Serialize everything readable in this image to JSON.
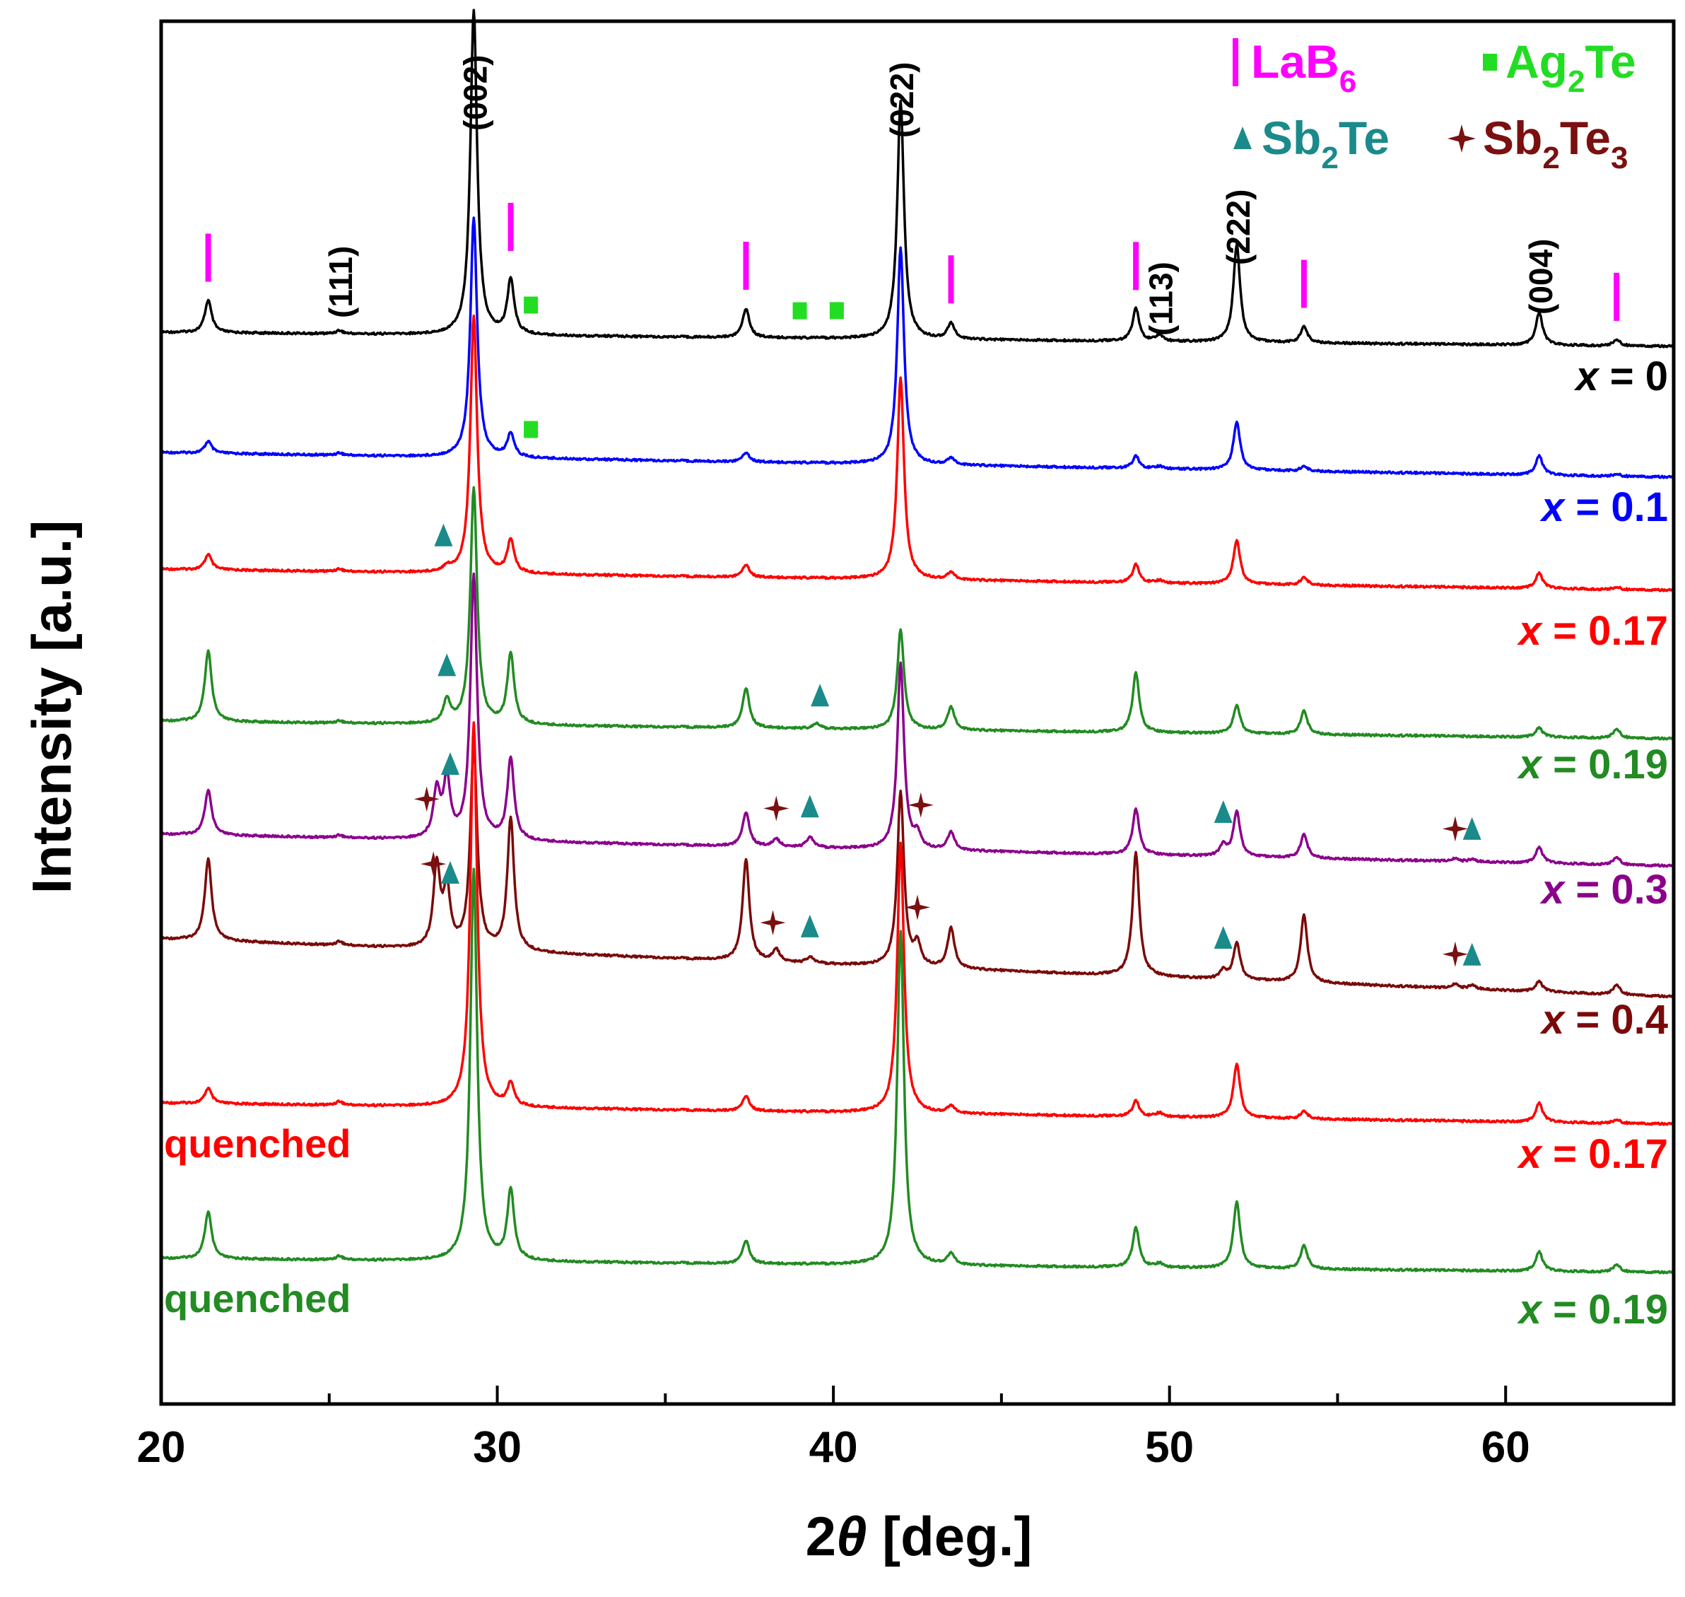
{
  "chart_data": {
    "type": "line",
    "xlabel_num": "2",
    "xlabel_theta": "θ",
    "xlabel_unit": " [deg.]",
    "ylabel": "Intensity [a.u.]",
    "xlim": [
      20,
      65
    ],
    "x_ticks": [
      "20",
      "30",
      "40",
      "50",
      "60"
    ],
    "legend": [
      {
        "name": "LaB",
        "sub": "6",
        "marker": "bar",
        "color": "#ff00ff"
      },
      {
        "name": "Ag",
        "sub": "2",
        "tail": "Te",
        "marker": "square",
        "color": "#22dd22"
      },
      {
        "name": "Sb",
        "sub": "2",
        "tail": "Te",
        "marker": "triangle",
        "color": "#1b8a8a"
      },
      {
        "name": "Sb",
        "sub": "2",
        "tail": "Te",
        "sub2": "3",
        "marker": "star",
        "color": "#7a1010"
      }
    ],
    "miller_indices": [
      {
        "label": "(111)",
        "x": 25.3
      },
      {
        "label": "(002)",
        "x": 29.3
      },
      {
        "label": "(022)",
        "x": 42.0
      },
      {
        "label": "(113)",
        "x": 49.7
      },
      {
        "label": "(222)",
        "x": 52.0
      },
      {
        "label": "(004)",
        "x": 61.0
      }
    ],
    "series": [
      {
        "name": "x = 0",
        "x_var": "x",
        "value": " = 0",
        "note": "",
        "color": "#000000",
        "baseline": 0.0,
        "amp": 1.0,
        "peaks": [
          [
            21.4,
            0.1
          ],
          [
            25.3,
            0.01
          ],
          [
            29.3,
            1.0
          ],
          [
            30.4,
            0.17
          ],
          [
            37.4,
            0.09
          ],
          [
            42.0,
            0.73
          ],
          [
            43.5,
            0.05
          ],
          [
            49.0,
            0.1
          ],
          [
            49.7,
            0.02
          ],
          [
            52.0,
            0.3
          ],
          [
            54.0,
            0.05
          ],
          [
            61.0,
            0.1
          ],
          [
            63.3,
            0.02
          ]
        ]
      },
      {
        "name": "x = 0.1",
        "x_var": "x",
        "value": " = 0.1",
        "note": "",
        "color": "#0000ff",
        "baseline": 0.0,
        "amp": 1.0,
        "peaks": [
          [
            21.4,
            0.05
          ],
          [
            25.3,
            0.01
          ],
          [
            29.3,
            1.0
          ],
          [
            30.4,
            0.1
          ],
          [
            37.4,
            0.04
          ],
          [
            42.0,
            0.9
          ],
          [
            43.5,
            0.03
          ],
          [
            49.0,
            0.05
          ],
          [
            49.7,
            0.01
          ],
          [
            52.0,
            0.2
          ],
          [
            54.0,
            0.02
          ],
          [
            61.0,
            0.08
          ],
          [
            63.3,
            0.01
          ]
        ]
      },
      {
        "name": "x = 0.17",
        "x_var": "x",
        "value": " = 0.17",
        "note": "",
        "color": "#ff0000",
        "baseline": 0.0,
        "amp": 1.0,
        "peaks": [
          [
            21.4,
            0.06
          ],
          [
            25.3,
            0.01
          ],
          [
            28.5,
            0.02
          ],
          [
            29.3,
            1.0
          ],
          [
            30.4,
            0.13
          ],
          [
            37.4,
            0.05
          ],
          [
            42.0,
            0.78
          ],
          [
            43.5,
            0.03
          ],
          [
            49.0,
            0.07
          ],
          [
            49.7,
            0.01
          ],
          [
            52.0,
            0.17
          ],
          [
            54.0,
            0.03
          ],
          [
            61.0,
            0.06
          ],
          [
            63.3,
            0.01
          ]
        ]
      },
      {
        "name": "x = 0.19",
        "x_var": "x",
        "value": " = 0.19",
        "note": "",
        "color": "#228b22",
        "baseline": 0.0,
        "amp": 1.0,
        "peaks": [
          [
            21.4,
            0.3
          ],
          [
            25.3,
            0.01
          ],
          [
            28.5,
            0.1
          ],
          [
            29.3,
            1.0
          ],
          [
            30.4,
            0.3
          ],
          [
            37.4,
            0.17
          ],
          [
            39.5,
            0.02
          ],
          [
            42.0,
            0.42
          ],
          [
            43.5,
            0.1
          ],
          [
            49.0,
            0.25
          ],
          [
            52.0,
            0.12
          ],
          [
            54.0,
            0.1
          ],
          [
            61.0,
            0.04
          ],
          [
            63.3,
            0.04
          ]
        ]
      },
      {
        "name": "x = 0.3",
        "x_var": "x",
        "value": " = 0.3",
        "note": "",
        "color": "#8b008b",
        "baseline": 0.0,
        "amp": 1.0,
        "peaks": [
          [
            21.4,
            0.17
          ],
          [
            25.3,
            0.01
          ],
          [
            28.2,
            0.18
          ],
          [
            28.5,
            0.22
          ],
          [
            29.3,
            1.0
          ],
          [
            30.4,
            0.31
          ],
          [
            37.4,
            0.13
          ],
          [
            38.3,
            0.03
          ],
          [
            39.3,
            0.04
          ],
          [
            42.0,
            0.7
          ],
          [
            42.5,
            0.05
          ],
          [
            43.5,
            0.07
          ],
          [
            49.0,
            0.17
          ],
          [
            51.6,
            0.04
          ],
          [
            52.0,
            0.17
          ],
          [
            54.0,
            0.09
          ],
          [
            58.5,
            0.01
          ],
          [
            59.0,
            0.01
          ],
          [
            61.0,
            0.06
          ],
          [
            63.3,
            0.03
          ]
        ]
      },
      {
        "name": "x = 0.4",
        "x_var": "x",
        "value": " = 0.4",
        "note": "",
        "color": "#7a0a0a",
        "baseline": 0.0,
        "amp": 1.0,
        "peaks": [
          [
            21.4,
            0.4
          ],
          [
            25.3,
            0.02
          ],
          [
            28.2,
            0.4
          ],
          [
            28.5,
            0.28
          ],
          [
            29.3,
            1.0
          ],
          [
            30.4,
            0.65
          ],
          [
            37.4,
            0.5
          ],
          [
            38.3,
            0.06
          ],
          [
            39.3,
            0.03
          ],
          [
            42.0,
            0.85
          ],
          [
            42.5,
            0.1
          ],
          [
            43.5,
            0.2
          ],
          [
            49.0,
            0.6
          ],
          [
            51.6,
            0.04
          ],
          [
            52.0,
            0.18
          ],
          [
            54.0,
            0.33
          ],
          [
            58.5,
            0.02
          ],
          [
            59.0,
            0.02
          ],
          [
            61.0,
            0.05
          ],
          [
            63.3,
            0.05
          ]
        ]
      },
      {
        "name": "x = 0.17",
        "x_var": "x",
        "value": " = 0.17",
        "note": "quenched",
        "color": "#ff0000",
        "baseline": 0.0,
        "amp": 1.0,
        "peaks": [
          [
            21.4,
            0.04
          ],
          [
            25.3,
            0.01
          ],
          [
            29.3,
            1.0
          ],
          [
            30.4,
            0.06
          ],
          [
            37.4,
            0.04
          ],
          [
            42.0,
            0.7
          ],
          [
            43.5,
            0.02
          ],
          [
            49.0,
            0.04
          ],
          [
            49.7,
            0.01
          ],
          [
            52.0,
            0.14
          ],
          [
            54.0,
            0.02
          ],
          [
            61.0,
            0.05
          ],
          [
            63.3,
            0.01
          ]
        ]
      },
      {
        "name": "x = 0.19",
        "x_var": "x",
        "value": " = 0.19",
        "note": "quenched",
        "color": "#228b22",
        "baseline": 0.0,
        "amp": 1.0,
        "peaks": [
          [
            21.4,
            0.12
          ],
          [
            25.3,
            0.01
          ],
          [
            29.3,
            1.0
          ],
          [
            30.4,
            0.18
          ],
          [
            37.4,
            0.06
          ],
          [
            42.0,
            0.85
          ],
          [
            43.5,
            0.03
          ],
          [
            49.0,
            0.1
          ],
          [
            49.7,
            0.01
          ],
          [
            52.0,
            0.17
          ],
          [
            54.0,
            0.06
          ],
          [
            61.0,
            0.05
          ],
          [
            63.3,
            0.02
          ]
        ]
      }
    ],
    "phase_markers": [
      {
        "phase": "LaB6",
        "series": 0,
        "x": [
          21.4,
          30.4,
          37.4,
          43.5,
          49.0,
          54.0,
          63.3
        ]
      },
      {
        "phase": "Ag2Te",
        "series": 0,
        "x": [
          31.0,
          39.0,
          40.1
        ]
      },
      {
        "phase": "Ag2Te",
        "series": 1,
        "x": [
          31.0
        ]
      },
      {
        "phase": "Sb2Te",
        "series": 2,
        "x": [
          28.4
        ]
      },
      {
        "phase": "Sb2Te",
        "series": 3,
        "x": [
          28.5,
          39.6
        ]
      },
      {
        "phase": "Sb2Te3",
        "series": 4,
        "x": [
          27.9,
          38.3,
          42.6,
          58.5
        ]
      },
      {
        "phase": "Sb2Te",
        "series": 4,
        "x": [
          28.6,
          39.3,
          51.6,
          59.0
        ]
      },
      {
        "phase": "Sb2Te3",
        "series": 5,
        "x": [
          28.1,
          38.2,
          42.5,
          58.5
        ]
      },
      {
        "phase": "Sb2Te",
        "series": 5,
        "x": [
          28.6,
          39.3,
          51.6,
          59.0
        ]
      }
    ]
  }
}
